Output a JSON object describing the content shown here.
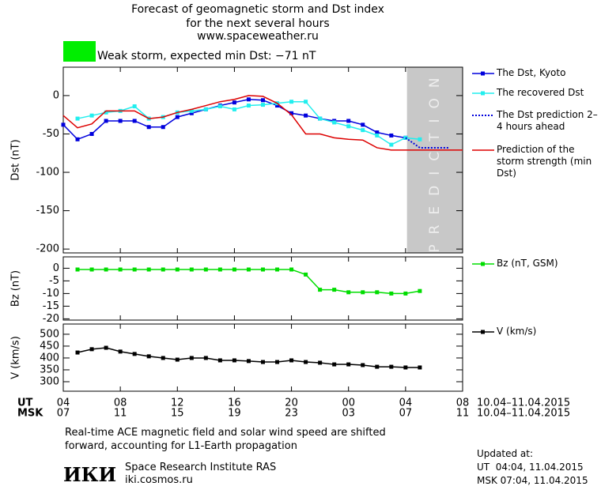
{
  "header": {
    "title_lines": [
      "Forecast of geomagnetic storm and Dst index",
      "for the next several hours",
      "www.spaceweather.ru"
    ],
    "storm_label": "Weak storm, expected min Dst: −71 nT",
    "storm_color": "#00ee00"
  },
  "chart_data": [
    {
      "type": "line",
      "y_label": "Dst (nT)",
      "xlim": [
        0,
        28
      ],
      "ylim": [
        -205,
        37
      ],
      "yticks": [
        -200,
        -150,
        -100,
        -50,
        0
      ],
      "prediction_region": [
        24.1,
        28
      ],
      "prediction_label": "PREDICTION",
      "prediction_color": "#c8c8c8",
      "series": [
        {
          "name": "The Dst, Kyoto",
          "color": "#0000dd",
          "marker": "square",
          "dash": false,
          "x": [
            0,
            1,
            2,
            3,
            4,
            5,
            6,
            7,
            8,
            9,
            10,
            11,
            12,
            13,
            14,
            15,
            16,
            17,
            18,
            19,
            20,
            21,
            22,
            23,
            24
          ],
          "values": [
            -38,
            -57,
            -50,
            -33,
            -33,
            -33,
            -41,
            -41,
            -28,
            -23,
            -18,
            -13,
            -9,
            -5,
            -6,
            -13,
            -23,
            -26,
            -30,
            -33,
            -33,
            -38,
            -48,
            -52,
            -55
          ]
        },
        {
          "name": "The recovered Dst",
          "color": "#22eeee",
          "marker": "square",
          "dash": false,
          "x": [
            1,
            2,
            3,
            4,
            5,
            6,
            7,
            8,
            9,
            10,
            11,
            12,
            13,
            14,
            15,
            16,
            17,
            18,
            19,
            20,
            21,
            22,
            23,
            24,
            25
          ],
          "values": [
            -30,
            -26,
            -22,
            -20,
            -14,
            -30,
            -28,
            -22,
            -20,
            -18,
            -14,
            -18,
            -13,
            -12,
            -10,
            -8,
            -8,
            -30,
            -35,
            -40,
            -45,
            -52,
            -64,
            -55,
            -57
          ]
        },
        {
          "name": "The Dst prediction 2–4 hours ahead",
          "color": "#0000dd",
          "marker": "none",
          "dash": true,
          "x": [
            24,
            25,
            27
          ],
          "values": [
            -55,
            -68,
            -68
          ]
        },
        {
          "name": "Prediction of the storm strength (min Dst)",
          "color": "#dd0000",
          "marker": "none",
          "dash": false,
          "x": [
            0,
            1,
            2,
            3,
            4,
            5,
            6,
            7,
            8,
            9,
            10,
            11,
            12,
            13,
            14,
            15,
            16,
            17,
            18,
            19,
            20,
            21,
            22,
            23,
            24,
            28
          ],
          "values": [
            -26,
            -42,
            -37,
            -20,
            -20,
            -20,
            -30,
            -28,
            -22,
            -18,
            -13,
            -8,
            -5,
            0,
            -1,
            -10,
            -25,
            -50,
            -50,
            -55,
            -57,
            -58,
            -68,
            -71,
            -71,
            -71
          ]
        }
      ]
    },
    {
      "type": "line",
      "y_label": "Bz (nT)",
      "xlim": [
        0,
        28
      ],
      "ylim": [
        -20.5,
        4.5
      ],
      "yticks": [
        -20,
        -15,
        -10,
        -5,
        0
      ],
      "series": [
        {
          "name": "Bz (nT, GSM)",
          "color": "#00dd00",
          "marker": "square",
          "dash": false,
          "x": [
            1,
            2,
            3,
            4,
            5,
            6,
            7,
            8,
            9,
            10,
            11,
            12,
            13,
            14,
            15,
            16,
            17,
            18,
            19,
            20,
            21,
            22,
            23,
            24,
            25
          ],
          "values": [
            -0.5,
            -0.5,
            -0.5,
            -0.5,
            -0.5,
            -0.5,
            -0.5,
            -0.5,
            -0.5,
            -0.5,
            -0.5,
            -0.5,
            -0.5,
            -0.5,
            -0.5,
            -0.5,
            -2.5,
            -8.5,
            -8.5,
            -9.5,
            -9.5,
            -9.5,
            -10,
            -10,
            -9
          ]
        }
      ]
    },
    {
      "type": "line",
      "y_label": "V (km/s)",
      "xlim": [
        0,
        28
      ],
      "ylim": [
        260,
        543
      ],
      "yticks": [
        300,
        350,
        400,
        450,
        500
      ],
      "xticks": [
        {
          "value": 0,
          "label": "04"
        },
        {
          "value": 4,
          "label": "08"
        },
        {
          "value": 8,
          "label": "12"
        },
        {
          "value": 12,
          "label": "16"
        },
        {
          "value": 16,
          "label": "20"
        },
        {
          "value": 20,
          "label": "00"
        },
        {
          "value": 24,
          "label": "04"
        },
        {
          "value": 28,
          "label": "08"
        }
      ],
      "x_row_name": "UT",
      "msk_row_name": "MSK",
      "msk_labels": [
        "07",
        "11",
        "15",
        "19",
        "23",
        "03",
        "07",
        "11"
      ],
      "date_range": "10.04–11.04.2015",
      "series": [
        {
          "name": "V (km/s)",
          "color": "#000000",
          "marker": "square",
          "dash": false,
          "x": [
            1,
            2,
            3,
            4,
            5,
            6,
            7,
            8,
            9,
            10,
            11,
            12,
            13,
            14,
            15,
            16,
            17,
            18,
            19,
            20,
            21,
            22,
            23,
            24,
            25
          ],
          "values": [
            423,
            437,
            443,
            427,
            417,
            407,
            400,
            393,
            400,
            400,
            390,
            390,
            387,
            383,
            383,
            390,
            383,
            380,
            373,
            373,
            370,
            363,
            363,
            360,
            360
          ]
        }
      ]
    }
  ],
  "footer": {
    "note_lines": [
      "Real-time ACE magnetic field and solar wind speed are shifted",
      "forward, accounting for L1-Earth propagation"
    ],
    "logo": "ИКИ",
    "institute": "Space Research Institute RAS",
    "site": "iki.cosmos.ru",
    "updated_title": "Updated at:",
    "updated_lines": [
      "UT  04:04, 11.04.2015",
      "MSK 07:04, 11.04.2015"
    ]
  }
}
